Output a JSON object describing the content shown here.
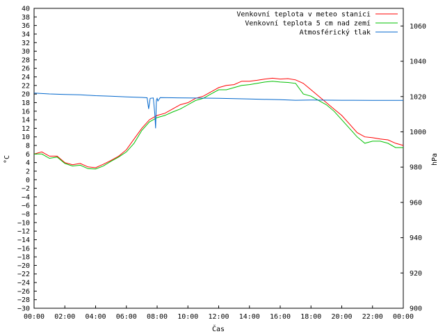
{
  "chart_data": {
    "type": "line",
    "xlabel": "Čas",
    "ylabel_left": "°C",
    "ylabel_right": "hPa",
    "x_ticks": [
      "00:00",
      "02:00",
      "04:00",
      "06:00",
      "08:00",
      "10:00",
      "12:00",
      "14:00",
      "16:00",
      "18:00",
      "20:00",
      "22:00",
      "00:00"
    ],
    "xlim_hours": [
      0,
      24
    ],
    "ylim_left": [
      -30,
      40
    ],
    "ytick_step_left": 2,
    "ylim_right": [
      900,
      1070
    ],
    "yticks_right": [
      900,
      920,
      940,
      960,
      980,
      1000,
      1020,
      1040,
      1060
    ],
    "legend_position": "top-right",
    "series": [
      {
        "name": "Venkovní teplota v meteo stanici",
        "axis": "left",
        "color": "#ff0000",
        "x": [
          0,
          0.5,
          1,
          1.5,
          2,
          2.5,
          3,
          3.5,
          4,
          4.5,
          5,
          5.5,
          6,
          6.5,
          7,
          7.5,
          8,
          8.5,
          9,
          9.5,
          10,
          10.5,
          11,
          11.5,
          12,
          12.5,
          13,
          13.5,
          14,
          14.5,
          15,
          15.5,
          16,
          16.5,
          17,
          17.5,
          18,
          18.5,
          19,
          19.5,
          20,
          20.5,
          21,
          21.5,
          22,
          22.5,
          23,
          23.5,
          24
        ],
        "values": [
          6,
          6.5,
          5.5,
          5.5,
          4,
          3.5,
          3.8,
          3,
          2.8,
          3.6,
          4.5,
          5.5,
          7,
          9.5,
          12,
          14,
          15,
          15.5,
          16.5,
          17.5,
          18,
          19,
          19.5,
          20.5,
          21.5,
          22,
          22.2,
          23,
          23,
          23.2,
          23.5,
          23.7,
          23.5,
          23.6,
          23.3,
          22.5,
          21,
          19.5,
          18,
          16.5,
          15,
          13,
          11,
          10,
          9.8,
          9.5,
          9.3,
          8.5,
          8
        ]
      },
      {
        "name": "Venkovní teplota 5 cm nad zemí",
        "axis": "left",
        "color": "#00c000",
        "x": [
          0,
          0.5,
          1,
          1.5,
          2,
          2.5,
          3,
          3.5,
          4,
          4.5,
          5,
          5.5,
          6,
          6.5,
          7,
          7.5,
          8,
          8.5,
          9,
          9.5,
          10,
          10.5,
          11,
          11.5,
          12,
          12.5,
          13,
          13.5,
          14,
          14.5,
          15,
          15.5,
          16,
          16.5,
          17,
          17.5,
          18,
          18.5,
          19,
          19.5,
          20,
          20.5,
          21,
          21.5,
          22,
          22.5,
          23,
          23.5,
          24
        ],
        "values": [
          6,
          6,
          5,
          5.3,
          3.8,
          3.2,
          3.4,
          2.6,
          2.5,
          3.2,
          4.3,
          5.3,
          6.5,
          8.5,
          11.5,
          13.5,
          14.5,
          15,
          15.8,
          16.5,
          17.5,
          18.5,
          19,
          20,
          21,
          21,
          21.5,
          22,
          22.2,
          22.5,
          22.8,
          23,
          22.8,
          22.7,
          22.5,
          20,
          19.5,
          18.5,
          17.5,
          16,
          14,
          12,
          10,
          8.5,
          9,
          9,
          8.5,
          7.5,
          7.5
        ]
      },
      {
        "name": "Atmosférický tlak",
        "axis": "right",
        "color": "#0066cc",
        "x": [
          0,
          1,
          2,
          3,
          4,
          5,
          6,
          7,
          7.35,
          7.45,
          7.55,
          7.75,
          7.85,
          7.9,
          7.95,
          8,
          8.05,
          8.2,
          9,
          10,
          12,
          14,
          16,
          17,
          18,
          20,
          22,
          24
        ],
        "values": [
          1022,
          1021.5,
          1021.2,
          1021,
          1020.5,
          1020.2,
          1019.8,
          1019.5,
          1019.3,
          1013,
          1019,
          1019.2,
          1010,
          1002,
          1018,
          1019,
          1017.5,
          1019.4,
          1019.3,
          1019.2,
          1019,
          1018.6,
          1018.2,
          1017.9,
          1018,
          1017.9,
          1017.8,
          1017.8
        ]
      }
    ]
  }
}
